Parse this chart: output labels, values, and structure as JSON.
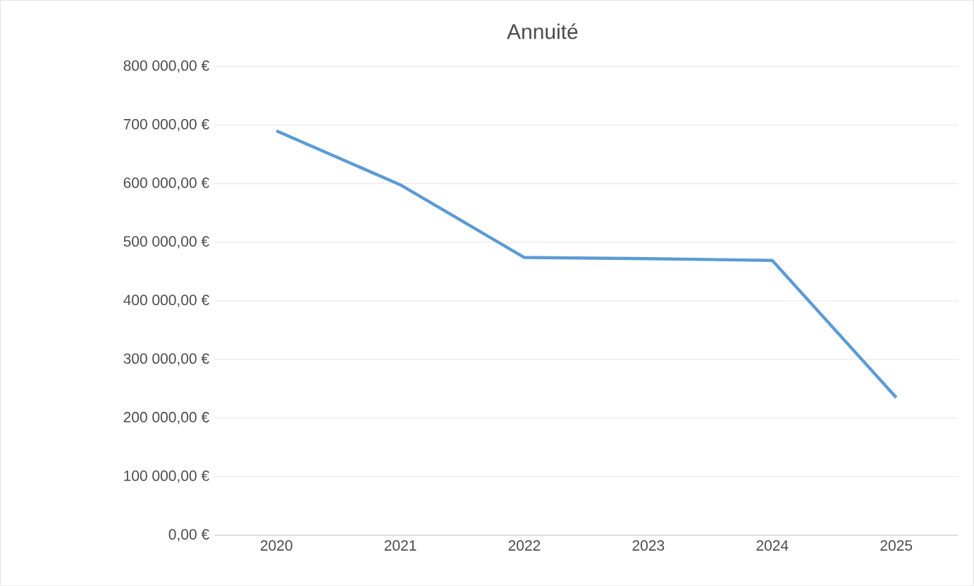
{
  "chart_data": {
    "type": "line",
    "title": "Annuité",
    "categories": [
      "2020",
      "2021",
      "2022",
      "2023",
      "2024",
      "2025"
    ],
    "series": [
      {
        "color": "#5b9bd5",
        "values": [
          690000,
          598000,
          474000,
          472000,
          469000,
          235000
        ]
      }
    ],
    "ylim": [
      0,
      800000
    ],
    "yticks": [
      {
        "value": 0,
        "label": "0,00 €"
      },
      {
        "value": 100000,
        "label": "100 000,00 €"
      },
      {
        "value": 200000,
        "label": "200 000,00 €"
      },
      {
        "value": 300000,
        "label": "300 000,00 €"
      },
      {
        "value": 400000,
        "label": "400 000,00 €"
      },
      {
        "value": 500000,
        "label": "500 000,00 €"
      },
      {
        "value": 600000,
        "label": "600 000,00 €"
      },
      {
        "value": 700000,
        "label": "700 000,00 €"
      },
      {
        "value": 800000,
        "label": "800 000,00 €"
      }
    ],
    "grid": "y",
    "marker": "none",
    "line_style": "solid"
  }
}
